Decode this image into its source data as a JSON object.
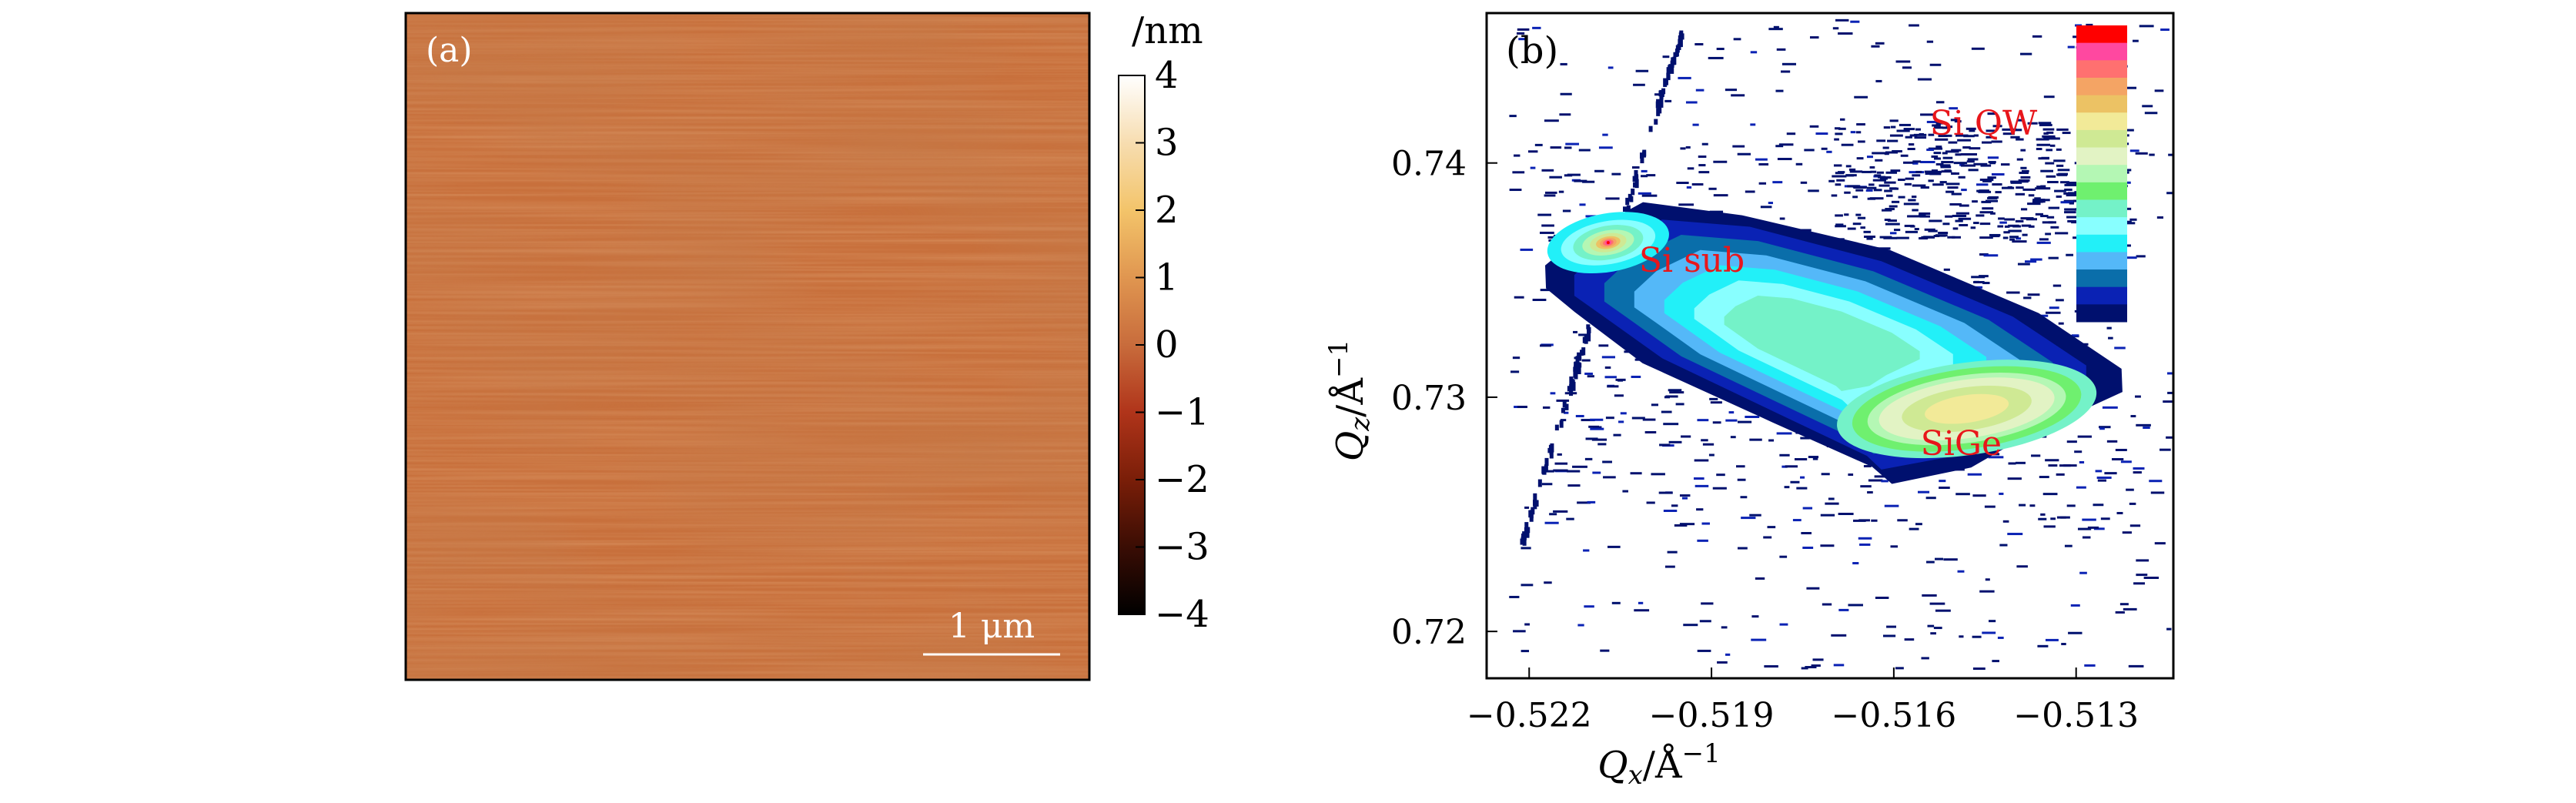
{
  "chart_data": [
    {
      "type": "heatmap",
      "panel_label": "(a)",
      "colorbar": {
        "unit": "/nm",
        "range": [
          -4,
          4
        ],
        "ticks": [
          "4",
          "3",
          "2",
          "1",
          "0",
          "−1",
          "−2",
          "−3",
          "−4"
        ],
        "colors": [
          "#000000",
          "#3a0d04",
          "#7a1e08",
          "#b0341a",
          "#c86c3c",
          "#e09650",
          "#f3c46a",
          "#f7ddb0",
          "#ffffff"
        ]
      },
      "scale_bar": "1 μm",
      "surface_color": "#c8703c"
    },
    {
      "type": "heatmap",
      "panel_label": "(b)",
      "xlabel": {
        "main": "Q",
        "sub": "x",
        "unit": "/Å",
        "sup": "−1"
      },
      "ylabel": {
        "main": "Q",
        "sub": "z",
        "unit": "/Å",
        "sup": "−1"
      },
      "xlim": [
        -0.5227,
        -0.5114
      ],
      "ylim": [
        0.718,
        0.7464
      ],
      "xticks": [
        -0.522,
        -0.519,
        -0.516,
        -0.513
      ],
      "xtick_labels": [
        "−0.522",
        "−0.519",
        "−0.516",
        "−0.513"
      ],
      "yticks": [
        0.72,
        0.73,
        0.74
      ],
      "ytick_labels": [
        "0.72",
        "0.73",
        "0.74"
      ],
      "peaks": [
        {
          "label": "Si sub",
          "x": -0.5207,
          "y": 0.7366
        },
        {
          "label": "SiGe",
          "x": -0.5148,
          "y": 0.7295
        },
        {
          "label": "Si QW",
          "x": -0.5149,
          "y": 0.742
        }
      ],
      "legend_colors": [
        "#ff0000",
        "#ff48a0",
        "#ff7070",
        "#f4a464",
        "#ecc264",
        "#f2ea98",
        "#cfe994",
        "#e2f3c4",
        "#b4f7b4",
        "#6ff06f",
        "#74f2c8",
        "#88ffff",
        "#22f0f8",
        "#54b8f8",
        "#0a6eaa",
        "#0a22b4",
        "#00106e"
      ],
      "legend_placement": "top-right"
    }
  ]
}
